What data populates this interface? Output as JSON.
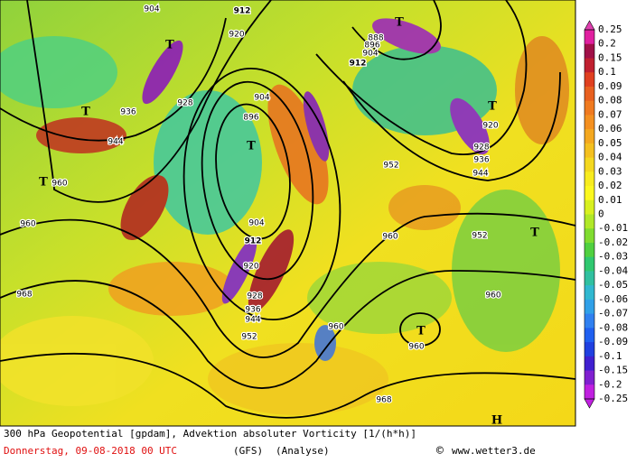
{
  "colorbar": {
    "labels": [
      "0.25",
      "0.2",
      "0.15",
      "0.1",
      "0.09",
      "0.08",
      "0.07",
      "0.06",
      "0.05",
      "0.04",
      "0.03",
      "0.02",
      "0.01",
      "0",
      "-0.01",
      "-0.02",
      "-0.03",
      "-0.04",
      "-0.05",
      "-0.06",
      "-0.07",
      "-0.08",
      "-0.09",
      "-0.1",
      "-0.15",
      "-0.2",
      "-0.25"
    ]
  },
  "map_labels": [
    "904",
    "912",
    "920",
    "T",
    "T",
    "888",
    "896",
    "904",
    "912",
    "928",
    "936",
    "T",
    "904",
    "896",
    "T",
    "944",
    "T",
    "960",
    "952",
    "920",
    "T",
    "928",
    "936",
    "944",
    "904",
    "912",
    "920",
    "928",
    "936",
    "944",
    "952",
    "960",
    "952",
    "T",
    "960",
    "968",
    "960",
    "T",
    "960",
    "960",
    "968",
    "H"
  ],
  "caption": {
    "title": "300 hPa Geopotential [gpdam], Advektion absoluter Vorticity [1/(h*h)]",
    "date": "Donnerstag, 09-08-2018  00 UTC",
    "model": "(GFS)",
    "analysis": "(Analyse)",
    "copyright": "©",
    "credit": "www.wetter3.de"
  }
}
